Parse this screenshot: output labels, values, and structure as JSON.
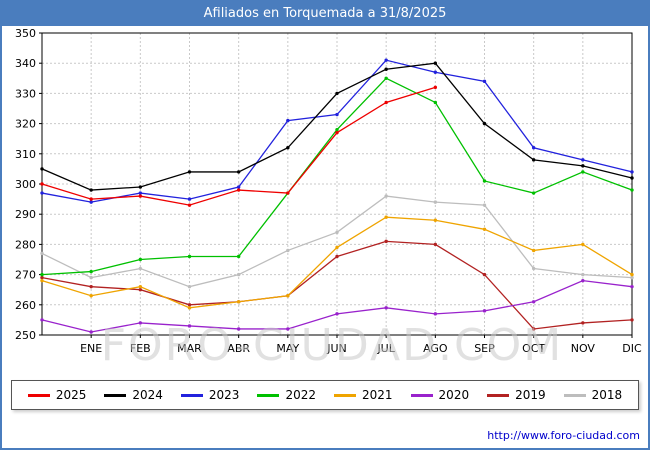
{
  "header": {
    "title": "Afiliados en Torquemada a 31/8/2025"
  },
  "watermark": "FORO-CIUDAD.COM",
  "footer": {
    "link": "http://www.foro-ciudad.com"
  },
  "chart_data": {
    "type": "line",
    "title": "Afiliados en Torquemada a 31/8/2025",
    "xlabel": "",
    "ylabel": "",
    "ylim": [
      250,
      350
    ],
    "y_ticks": [
      250,
      260,
      270,
      280,
      290,
      300,
      310,
      320,
      330,
      340,
      350
    ],
    "grid": true,
    "legend_position": "bottom",
    "x_labels": [
      "",
      "ENE",
      "FEB",
      "MAR",
      "ABR",
      "MAY",
      "JUN",
      "JUL",
      "AGO",
      "SEP",
      "OCT",
      "NOV",
      "DIC"
    ],
    "series": [
      {
        "name": "2025",
        "color": "#ee0000",
        "values": [
          300,
          295,
          296,
          293,
          298,
          297,
          317,
          327,
          332
        ]
      },
      {
        "name": "2024",
        "color": "#000000",
        "values": [
          305,
          298,
          299,
          304,
          304,
          312,
          330,
          338,
          340,
          320,
          308,
          306,
          302
        ]
      },
      {
        "name": "2023",
        "color": "#2222dd",
        "values": [
          297,
          294,
          297,
          295,
          299,
          321,
          323,
          341,
          337,
          334,
          312,
          308,
          304
        ]
      },
      {
        "name": "2022",
        "color": "#00c000",
        "values": [
          270,
          271,
          275,
          276,
          276,
          297,
          318,
          335,
          327,
          301,
          297,
          304,
          298
        ]
      },
      {
        "name": "2021",
        "color": "#efa400",
        "values": [
          268,
          263,
          266,
          259,
          261,
          263,
          279,
          289,
          288,
          285,
          278,
          280,
          270
        ]
      },
      {
        "name": "2020",
        "color": "#9922cc",
        "values": [
          255,
          251,
          254,
          253,
          252,
          252,
          257,
          259,
          257,
          258,
          261,
          268,
          266
        ]
      },
      {
        "name": "2019",
        "color": "#b22222",
        "values": [
          269,
          266,
          265,
          260,
          261,
          263,
          276,
          281,
          280,
          270,
          252,
          254,
          255
        ]
      },
      {
        "name": "2018",
        "color": "#bdbdbd",
        "values": [
          277,
          269,
          272,
          266,
          270,
          278,
          284,
          296,
          294,
          293,
          272,
          270,
          269
        ]
      }
    ]
  }
}
